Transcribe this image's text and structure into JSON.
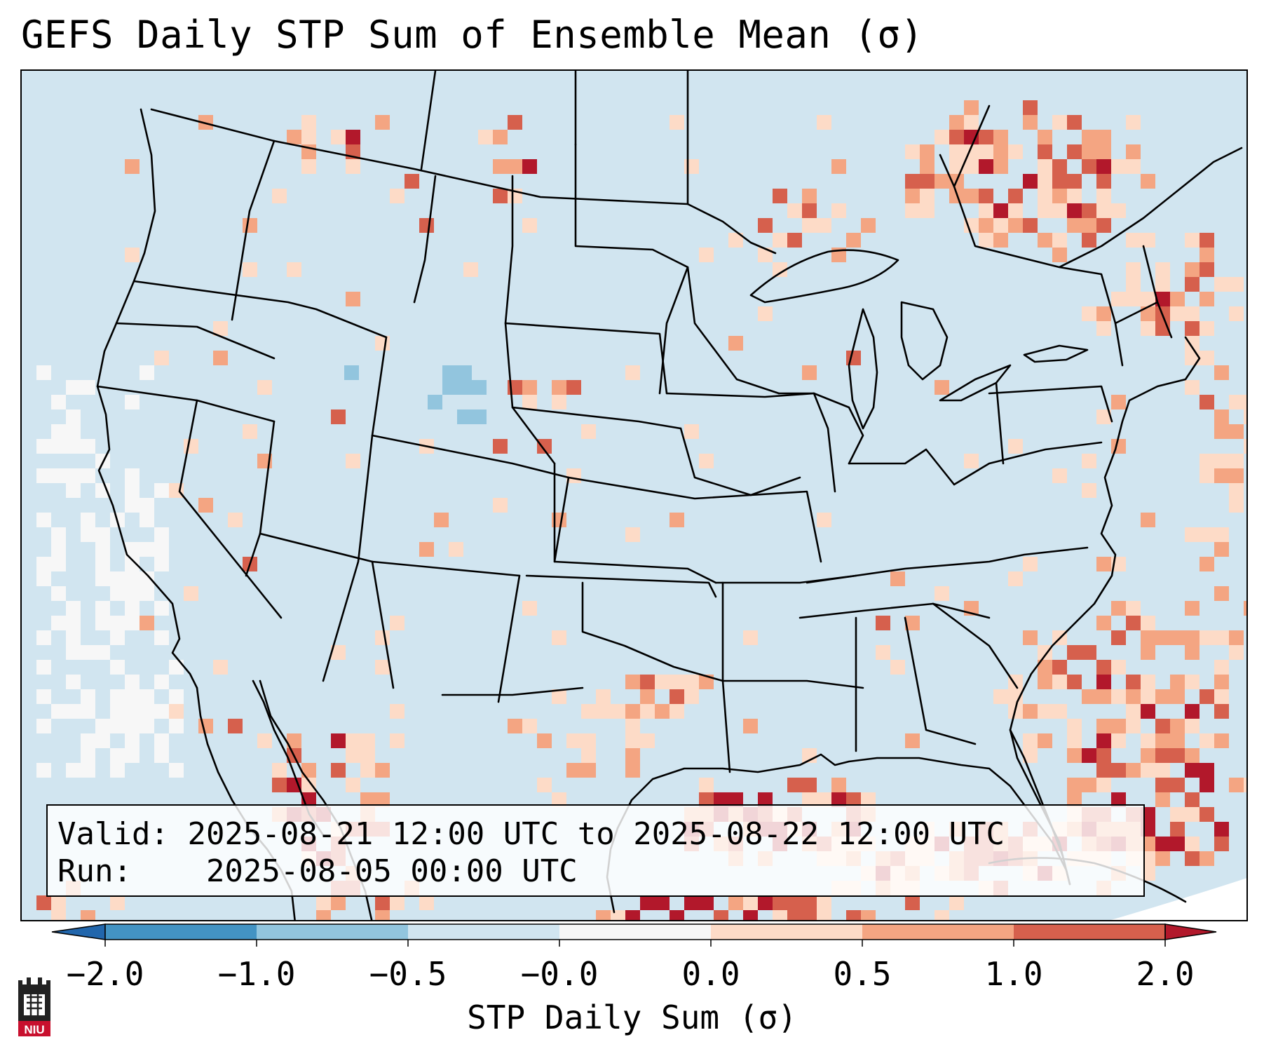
{
  "title": "GEFS Daily STP Sum of Ensemble Mean (σ)",
  "info": {
    "valid_label": "Valid:",
    "valid_value": "2025-08-21 12:00 UTC to 2025-08-22 12:00 UTC",
    "run_label": "Run:",
    "run_value": "2025-08-05 00:00 UTC"
  },
  "colorbar": {
    "label": "STP Daily Sum (σ)",
    "ticks": [
      "−2.0",
      "−1.0",
      "−0.5",
      "−0.0",
      "0.0",
      "0.5",
      "1.0",
      "2.0"
    ],
    "bins": [
      {
        "color": "#4393c3"
      },
      {
        "color": "#92c5de"
      },
      {
        "color": "#d1e5f0"
      },
      {
        "color": "#f7f7f7"
      },
      {
        "color": "#fddbc7"
      },
      {
        "color": "#f4a582"
      },
      {
        "color": "#d6604d"
      }
    ],
    "under_color": "#2166ac",
    "over_color": "#b2182b"
  },
  "legend_colors": {
    "background": "#d1e5f0",
    "near_zero": "#f7f7f7",
    "light_positive": "#fddbc7",
    "medium_positive": "#f4a582",
    "strong_positive": "#d6604d",
    "extreme_positive": "#b2182b",
    "light_negative": "#92c5de"
  },
  "logo": {
    "text": "NIU",
    "icon": "niu-castle-logo-icon"
  }
}
